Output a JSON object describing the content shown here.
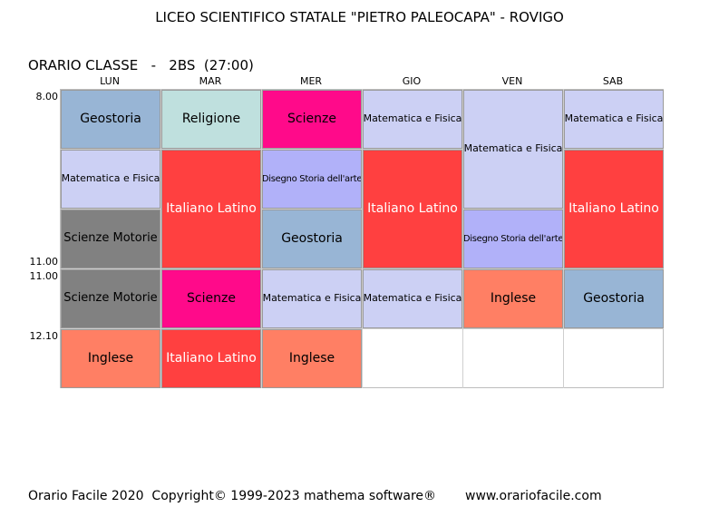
{
  "header": {
    "school": "LICEO SCIENTIFICO STATALE \"PIETRO PALEOCAPA\" - ROVIGO",
    "class_title": "ORARIO CLASSE   -   2BS  (27:00)"
  },
  "days": [
    "LUN",
    "MAR",
    "MER",
    "GIO",
    "VEN",
    "SAB"
  ],
  "times": [
    "8.00",
    "11.00",
    "11.00",
    "12.10"
  ],
  "colors": {
    "geostoria": "#98b5d5",
    "religione": "#bfe0de",
    "scienze": "#ff0a8a",
    "matematica_fisica": "#ccd0f4",
    "disegno_storia_arte": "#b1b1f9",
    "italiano_latino": "#ff4040",
    "scienze_motorie": "#818181",
    "inglese": "#ff7f64"
  },
  "lessons": {
    "lun_1": "Geostoria",
    "lun_2": "Matematica e Fisica",
    "lun_3": "Scienze   Motorie",
    "lun_4": "Scienze   Motorie",
    "lun_5": "Inglese",
    "mar_1": "Religione",
    "mar_2": "Italiano Latino",
    "mar_4": "Scienze",
    "mar_5": "Italiano Latino",
    "mer_1": "Scienze",
    "mer_2": "Disegno Storia dell'arte",
    "mer_3": "Geostoria",
    "mer_4": "Matematica e Fisica",
    "mer_5": "Inglese",
    "gio_1": "Matematica e Fisica",
    "gio_2": "Italiano Latino",
    "gio_4": "Matematica e Fisica",
    "ven_1": "Matematica e Fisica",
    "ven_3": "Disegno Storia dell'arte",
    "ven_4": "Inglese",
    "sab_1": "Matematica e Fisica",
    "sab_2": "Italiano Latino",
    "sab_4": "Geostoria"
  },
  "footer": {
    "copyright": "Orario Facile 2020  Copyright© 1999-2023 mathema software®",
    "website": "www.orariofacile.com"
  }
}
